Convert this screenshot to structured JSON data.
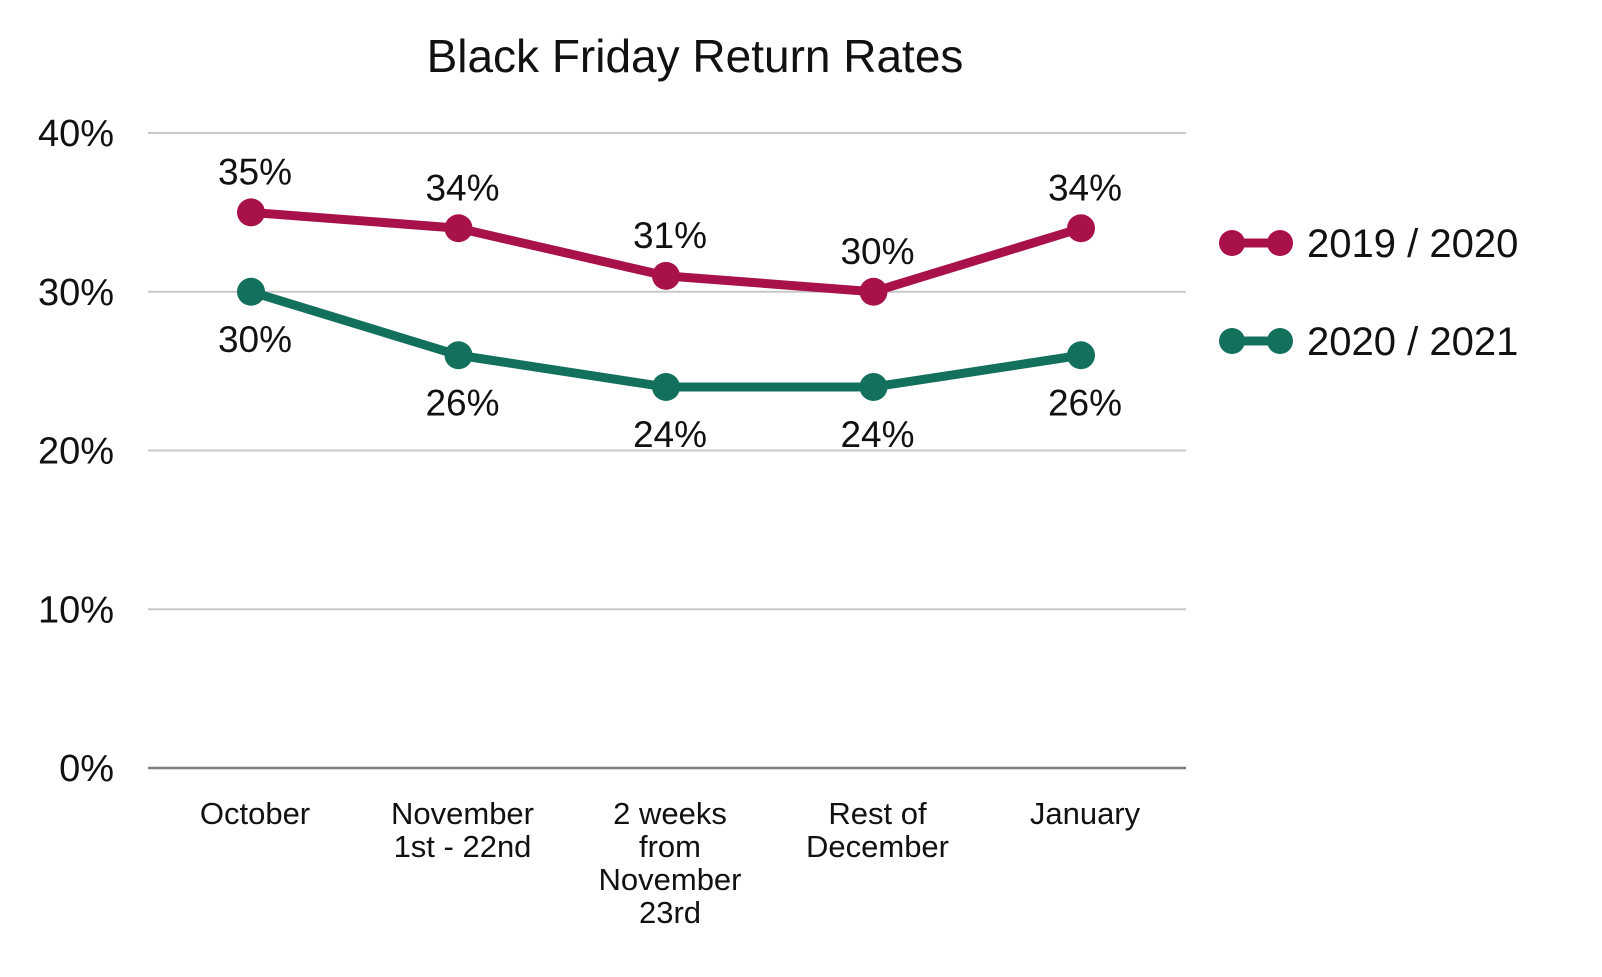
{
  "chart_data": {
    "type": "line",
    "title": "Black Friday Return Rates",
    "categories": [
      [
        "October"
      ],
      [
        "November",
        "1st - 22nd"
      ],
      [
        "2 weeks",
        "from",
        "November",
        "23rd"
      ],
      [
        "Rest of",
        "December"
      ],
      [
        "January"
      ]
    ],
    "y_ticks": [
      "0%",
      "10%",
      "20%",
      "30%",
      "40%"
    ],
    "ylim": [
      0,
      40
    ],
    "grid": true,
    "legend_position": "right",
    "series": [
      {
        "name": "2019 / 2020",
        "color": "#A8114A",
        "values": [
          35,
          34,
          31,
          30,
          34
        ],
        "labels": [
          "35%",
          "34%",
          "31%",
          "30%",
          "34%"
        ],
        "label_position": "above"
      },
      {
        "name": "2020 / 2021",
        "color": "#13705C",
        "values": [
          30,
          26,
          24,
          24,
          26
        ],
        "labels": [
          "30%",
          "26%",
          "24%",
          "24%",
          "26%"
        ],
        "label_position": "below"
      }
    ]
  }
}
